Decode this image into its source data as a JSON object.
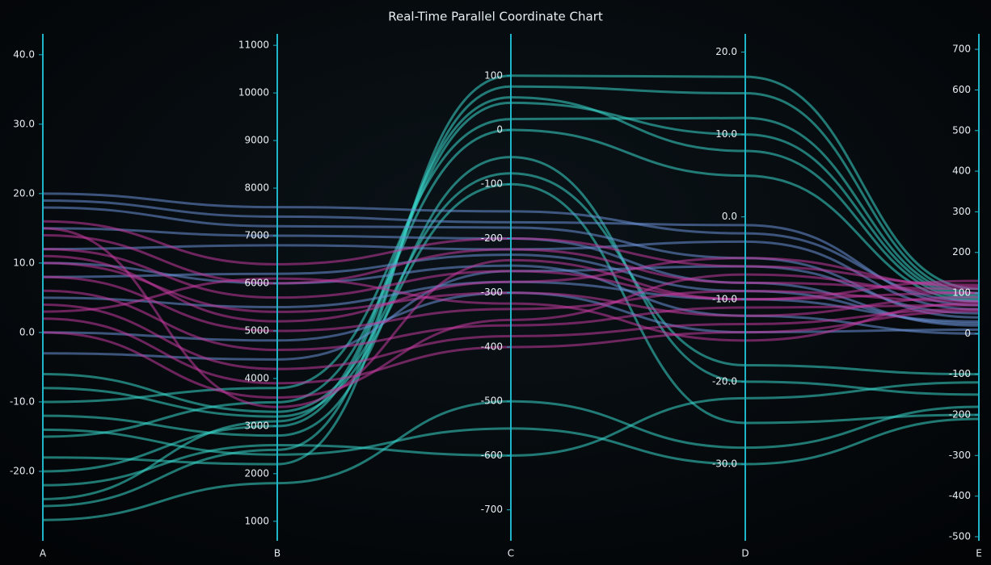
{
  "chart_data": {
    "type": "parallel",
    "title": "Real-Time Parallel Coordinate Chart",
    "axis_color": "#1fb5c9",
    "axes": [
      {
        "name": "A",
        "lim": [
          -30,
          43
        ],
        "ticks": [
          {
            "value": 40,
            "label": "40.0"
          },
          {
            "value": 30,
            "label": "30.0"
          },
          {
            "value": 20,
            "label": "20.0"
          },
          {
            "value": 10,
            "label": "10.0"
          },
          {
            "value": 0,
            "label": "0.0"
          },
          {
            "value": -10,
            "label": "-10.0"
          },
          {
            "value": -20,
            "label": "-20.0"
          }
        ]
      },
      {
        "name": "B",
        "lim": [
          590,
          11240
        ],
        "ticks": [
          11000,
          10000,
          9000,
          8000,
          7000,
          6000,
          5000,
          4000,
          3000,
          2000,
          1000
        ]
      },
      {
        "name": "C",
        "lim": [
          -757,
          177
        ],
        "ticks": [
          100,
          0,
          -100,
          -200,
          -300,
          -400,
          -500,
          -600,
          -700
        ]
      },
      {
        "name": "D",
        "lim": [
          -39.3,
          22.2
        ],
        "ticks": [
          {
            "value": 20,
            "label": "20.0"
          },
          {
            "value": 10,
            "label": "10.0"
          },
          {
            "value": 0,
            "label": "0.0"
          },
          {
            "value": -10,
            "label": "-10.0"
          },
          {
            "value": -20,
            "label": "-20.0"
          },
          {
            "value": -30,
            "label": "-30.0"
          }
        ]
      },
      {
        "name": "E",
        "lim": [
          -510,
          738
        ],
        "ticks": [
          700,
          600,
          500,
          400,
          300,
          200,
          100,
          0,
          -100,
          -200,
          -300,
          -400,
          -500
        ]
      }
    ],
    "series": [
      {
        "color": "#38d6cb",
        "lines": [
          [
            -25,
            2500,
            80,
            15,
            100
          ],
          [
            -20,
            3000,
            50,
            10,
            90
          ],
          [
            -15,
            3500,
            0,
            5,
            80
          ],
          [
            -12,
            2800,
            -50,
            -20,
            -150
          ],
          [
            -8,
            3200,
            -100,
            -25,
            -200
          ],
          [
            -18,
            2200,
            100,
            17,
            110
          ],
          [
            -27,
            1800,
            -500,
            -28,
            -180
          ],
          [
            -22,
            2600,
            -600,
            -22,
            -120
          ],
          [
            -10,
            3800,
            20,
            12,
            95
          ],
          [
            -6,
            3300,
            -80,
            -18,
            -100
          ],
          [
            -14,
            2400,
            -550,
            -30,
            -210
          ],
          [
            -24,
            3100,
            60,
            8,
            85
          ]
        ]
      },
      {
        "color": "#6a8fd6",
        "lines": [
          [
            20,
            7600,
            -150,
            -2,
            80
          ],
          [
            18,
            7200,
            -180,
            -5,
            40
          ],
          [
            15,
            7000,
            -200,
            -8,
            20
          ],
          [
            12,
            6800,
            -220,
            -3,
            60
          ],
          [
            10,
            6000,
            -250,
            -12,
            0
          ],
          [
            5,
            5500,
            -280,
            -10,
            30
          ],
          [
            0,
            4800,
            -300,
            -14,
            10
          ],
          [
            -3,
            4400,
            -260,
            -6,
            50
          ],
          [
            19,
            7400,
            -170,
            -1,
            70
          ],
          [
            8,
            6200,
            -230,
            -9,
            25
          ]
        ]
      },
      {
        "color": "#c23a9e",
        "lines": [
          [
            16,
            6400,
            -200,
            -6,
            120
          ],
          [
            14,
            6000,
            -220,
            -8,
            110
          ],
          [
            12,
            5700,
            -260,
            -10,
            100
          ],
          [
            10,
            5400,
            -300,
            -12,
            90
          ],
          [
            8,
            5000,
            -330,
            -9,
            80
          ],
          [
            6,
            4600,
            -360,
            -11,
            70
          ],
          [
            4,
            4200,
            -380,
            -13,
            60
          ],
          [
            2,
            3900,
            -400,
            -14,
            55
          ],
          [
            0,
            3600,
            -350,
            -7,
            100
          ],
          [
            15,
            3400,
            -240,
            -10,
            130
          ],
          [
            11,
            5200,
            -280,
            -5,
            115
          ],
          [
            3,
            6100,
            -320,
            -15,
            75
          ]
        ]
      }
    ]
  }
}
